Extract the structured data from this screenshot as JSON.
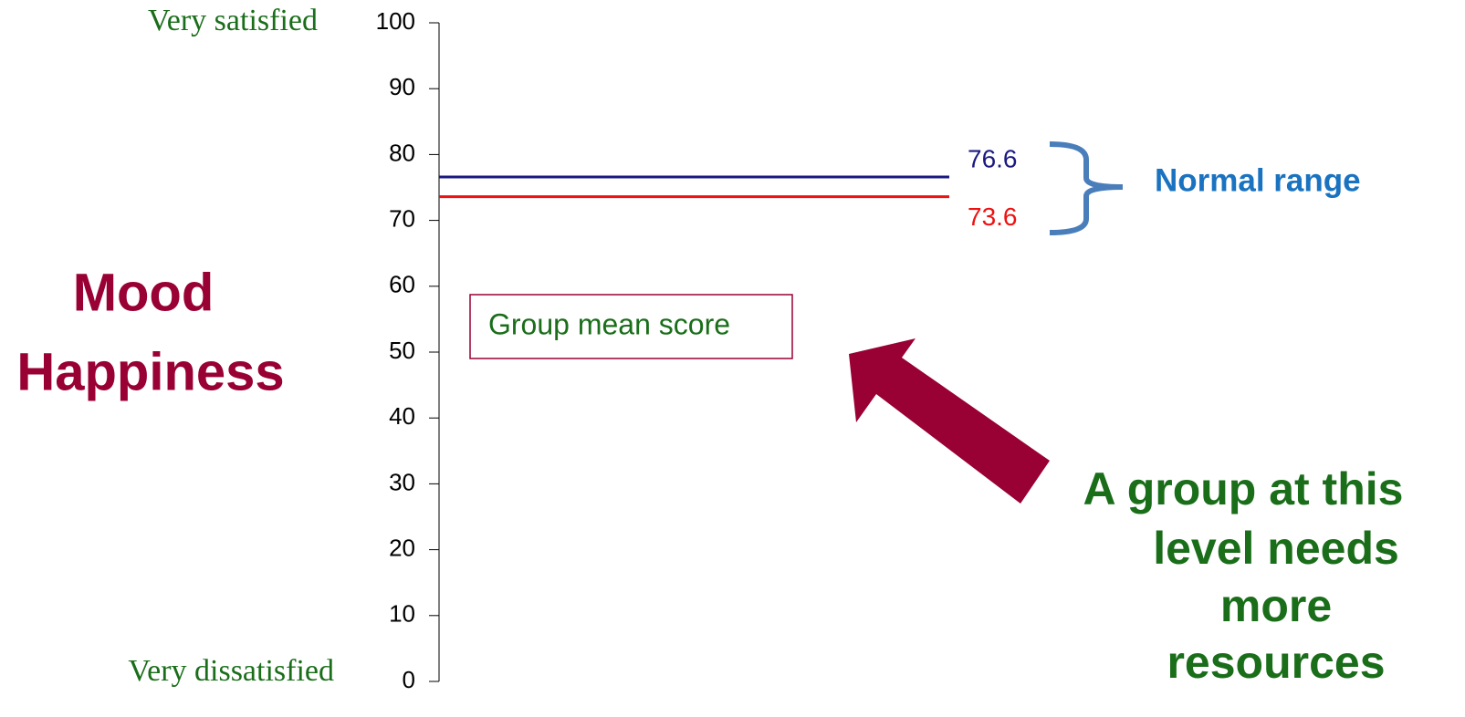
{
  "chart_data": {
    "type": "hline",
    "ylim": [
      0,
      100
    ],
    "yticks": [
      0,
      10,
      20,
      30,
      40,
      50,
      60,
      70,
      80,
      90,
      100
    ],
    "series": [
      {
        "color": "#1a1a80",
        "values": [
          76.6
        ]
      },
      {
        "color": "#ee1111",
        "values": [
          73.6
        ]
      }
    ],
    "top_label": "Very satisfied",
    "bottom_label": "Very dissatisfied",
    "ylabel": [
      "Mood",
      "Happiness"
    ],
    "box_label": "Group mean score",
    "range_label": "Normal range",
    "callout": [
      "A group at this",
      "level needs",
      "more",
      "resources"
    ]
  }
}
